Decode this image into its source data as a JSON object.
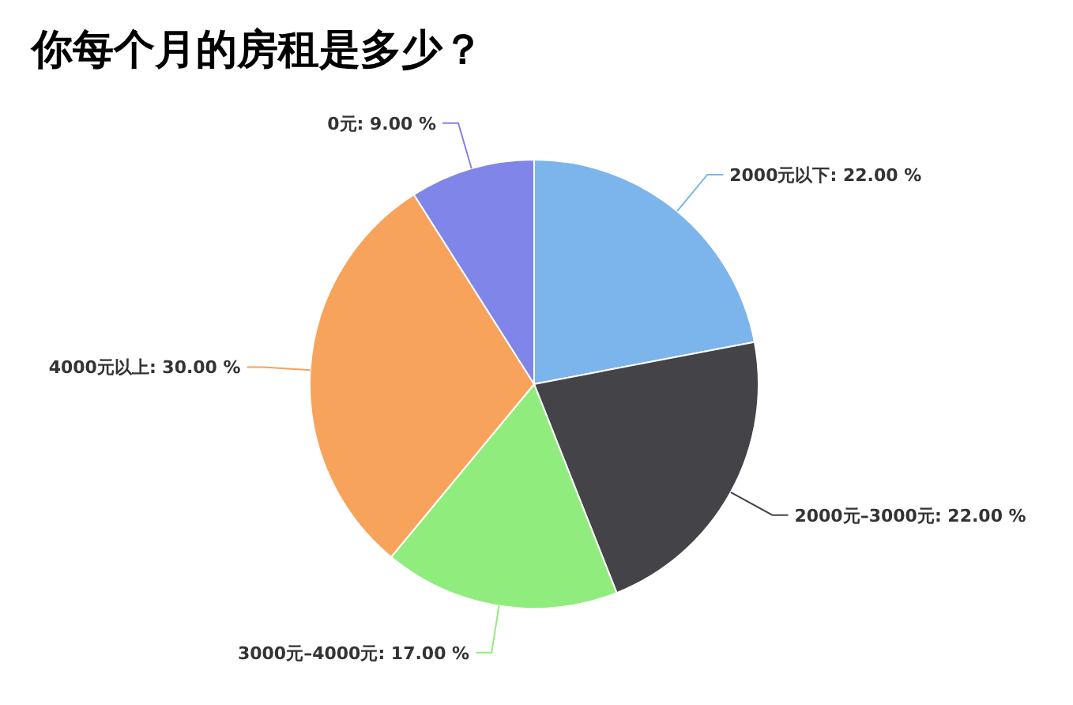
{
  "chart_data": {
    "type": "pie",
    "title": "你每个月的房租是多少？",
    "categories": [
      "2000元以下",
      "2000元–3000元",
      "3000元–4000元",
      "4000元以上",
      "0元"
    ],
    "values": [
      22,
      22,
      17,
      30,
      9
    ],
    "colors": [
      "#7cb5ec",
      "#434348",
      "#90ed7d",
      "#f7a35c",
      "#8085e9"
    ],
    "value_labels": [
      "22.00 %",
      "22.00 %",
      "17.00 %",
      "30.00 %",
      "9.00 %"
    ]
  }
}
